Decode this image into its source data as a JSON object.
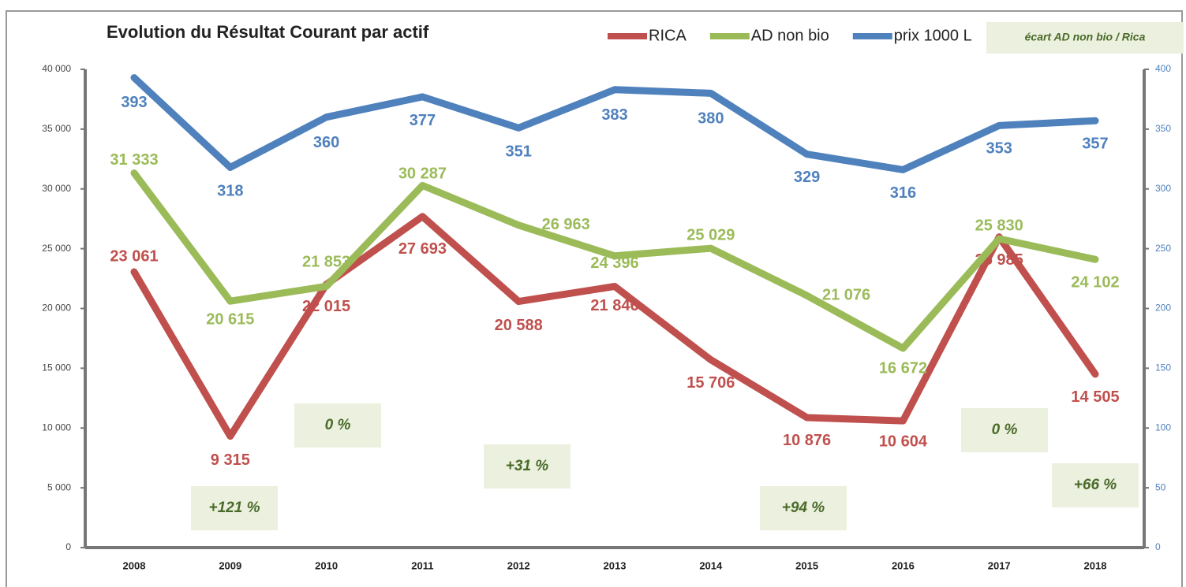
{
  "chart_data": {
    "type": "line",
    "title": "Evolution du Résultat Courant par actif",
    "categories": [
      "2008",
      "2009",
      "2010",
      "2011",
      "2012",
      "2013",
      "2014",
      "2015",
      "2016",
      "2017",
      "2018"
    ],
    "ylim": [
      0,
      40000
    ],
    "yticks": [
      {
        "value": 0,
        "label": "0"
      },
      {
        "value": 5000,
        "label": "5 000"
      },
      {
        "value": 10000,
        "label": "10 000"
      },
      {
        "value": 15000,
        "label": "15 000"
      },
      {
        "value": 20000,
        "label": "20 000"
      },
      {
        "value": 25000,
        "label": "25 000"
      },
      {
        "value": 30000,
        "label": "30 000"
      },
      {
        "value": 35000,
        "label": "35 000"
      },
      {
        "value": 40000,
        "label": "40 000"
      }
    ],
    "y2lim": [
      0,
      400
    ],
    "y2ticks": [
      0,
      50,
      100,
      150,
      200,
      250,
      300,
      350,
      400
    ],
    "series": [
      {
        "name": "RICA",
        "color": "#c0504d",
        "values": [
          23061,
          9315,
          22015,
          27693,
          20588,
          21846,
          15706,
          10876,
          10604,
          25985,
          14505
        ],
        "value_labels": [
          "23 061",
          "9 315",
          "22 015",
          "27 693",
          "20 588",
          "21 846",
          "15 706",
          "10 876",
          "10 604",
          "25 985",
          "14 505"
        ]
      },
      {
        "name": "AD non bio",
        "color": "#9bbb59",
        "values": [
          31333,
          20615,
          21853,
          30287,
          26963,
          24396,
          25029,
          21076,
          16672,
          25830,
          24102
        ],
        "value_labels": [
          "31 333",
          "20 615",
          "21 853",
          "30 287",
          "26 963",
          "24 396",
          "25 029",
          "21 076",
          "16 672",
          "25 830",
          "24 102"
        ]
      },
      {
        "name": "prix 1000 L",
        "color": "#4f81bd",
        "axis": "y2",
        "values": [
          393,
          318,
          360,
          377,
          351,
          383,
          380,
          329,
          316,
          353,
          357
        ]
      }
    ],
    "legend_note": "écart AD non bio / Rica",
    "annotations": [
      "+121 %",
      "0 %",
      "+31 %",
      "+94 %",
      "0 %",
      "+66 %"
    ]
  }
}
